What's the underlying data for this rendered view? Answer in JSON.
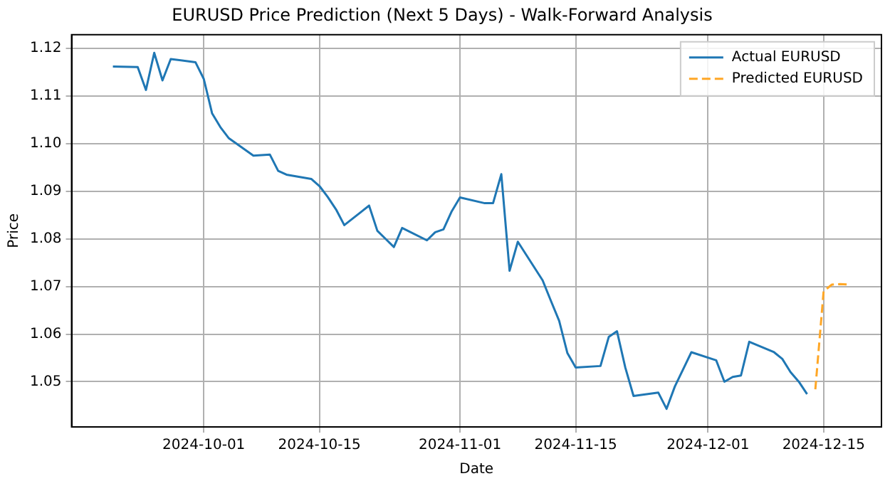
{
  "chart_data": {
    "type": "line",
    "title": "EURUSD Price Prediction (Next 5 Days) - Walk-Forward Analysis",
    "xlabel": "Date",
    "ylabel": "Price",
    "series": [
      {
        "name": "Actual EURUSD",
        "color": "#1f77b4",
        "line_style": "solid",
        "x": [
          "2024-09-20",
          "2024-09-23",
          "2024-09-24",
          "2024-09-25",
          "2024-09-26",
          "2024-09-27",
          "2024-09-30",
          "2024-10-01",
          "2024-10-02",
          "2024-10-03",
          "2024-10-04",
          "2024-10-07",
          "2024-10-08",
          "2024-10-09",
          "2024-10-10",
          "2024-10-11",
          "2024-10-14",
          "2024-10-15",
          "2024-10-16",
          "2024-10-17",
          "2024-10-18",
          "2024-10-21",
          "2024-10-22",
          "2024-10-23",
          "2024-10-24",
          "2024-10-25",
          "2024-10-28",
          "2024-10-29",
          "2024-10-30",
          "2024-10-31",
          "2024-11-01",
          "2024-11-04",
          "2024-11-05",
          "2024-11-06",
          "2024-11-07",
          "2024-11-08",
          "2024-11-11",
          "2024-11-12",
          "2024-11-13",
          "2024-11-14",
          "2024-11-15",
          "2024-11-18",
          "2024-11-19",
          "2024-11-20",
          "2024-11-21",
          "2024-11-22",
          "2024-11-25",
          "2024-11-26",
          "2024-11-27",
          "2024-11-29",
          "2024-12-02",
          "2024-12-03",
          "2024-12-04",
          "2024-12-05",
          "2024-12-06",
          "2024-12-09",
          "2024-12-10",
          "2024-12-11",
          "2024-12-12",
          "2024-12-13"
        ],
        "values": [
          1.1162,
          1.1161,
          1.1113,
          1.1191,
          1.1133,
          1.1178,
          1.1171,
          1.1136,
          1.1064,
          1.1035,
          1.1012,
          1.0975,
          1.0976,
          1.0977,
          1.0943,
          1.0935,
          1.0926,
          1.0911,
          1.0888,
          1.0862,
          1.0829,
          1.087,
          1.0817,
          1.08,
          1.0783,
          1.0823,
          1.0797,
          1.0814,
          1.082,
          1.0858,
          1.0887,
          1.0875,
          1.0875,
          1.0936,
          1.0733,
          1.0794,
          1.0713,
          1.067,
          1.0628,
          1.056,
          1.053,
          1.0533,
          1.0594,
          1.0606,
          1.053,
          1.047,
          1.0477,
          1.0443,
          1.049,
          1.0562,
          1.0545,
          1.05,
          1.051,
          1.0513,
          1.0584,
          1.0562,
          1.0548,
          1.052,
          1.05,
          1.0474
        ]
      },
      {
        "name": "Predicted EURUSD",
        "color": "#ffa726",
        "line_style": "dashed",
        "x": [
          "2024-12-14",
          "2024-12-15",
          "2024-12-16",
          "2024-12-17",
          "2024-12-18"
        ],
        "values": [
          1.0484,
          1.069,
          1.0704,
          1.0705,
          1.0704
        ]
      }
    ],
    "xlim": [
      "2024-09-15",
      "2024-12-22"
    ],
    "xticks": [
      "2024-10-01",
      "2024-10-15",
      "2024-11-01",
      "2024-11-15",
      "2024-12-01",
      "2024-12-15"
    ],
    "ylim": [
      1.0405,
      1.1229
    ],
    "yticks": [
      1.05,
      1.06,
      1.07,
      1.08,
      1.09,
      {
        "value": 1.1,
        "label": "1.10"
      },
      1.11,
      1.12
    ],
    "grid": true,
    "legend": "top right",
    "marker": "none"
  }
}
